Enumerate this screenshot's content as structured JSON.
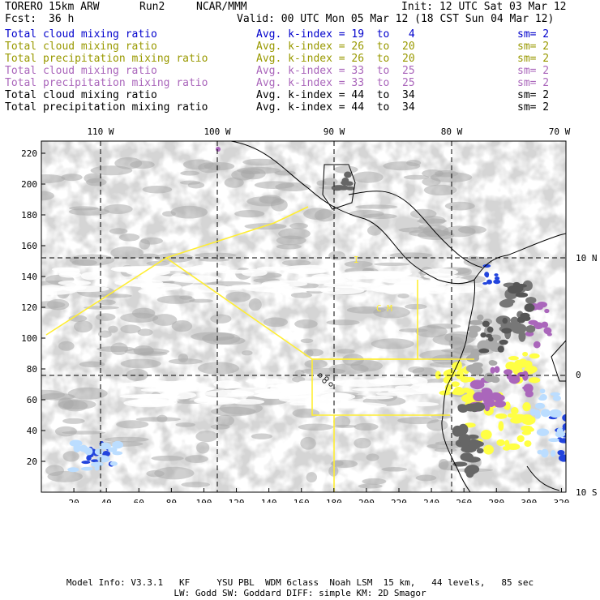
{
  "header": {
    "model": "TORERO",
    "resolution": "15km ARW",
    "run": "Run2",
    "org": "NCAR/MMM",
    "init": "Init: 12 UTC Sat 03 Mar 12",
    "fcst_label": "Fcst:",
    "fcst_value": "36 h",
    "valid": "Valid: 00 UTC Mon 05 Mar 12 (18 CST Sun 04 Mar 12)"
  },
  "legend": [
    {
      "name": "Total cloud mixing ratio",
      "avg": "Avg. k-index =",
      "from": "19",
      "to_word": "to",
      "to": "4",
      "sm": "sm= 2",
      "color": "#0000cc"
    },
    {
      "name": "Total cloud mixing ratio",
      "avg": "Avg. k-index =",
      "from": "26",
      "to_word": "to",
      "to": "20",
      "sm": "sm= 2",
      "color": "#999900"
    },
    {
      "name": "Total precipitation mixing ratio",
      "avg": "Avg. k-index =",
      "from": "26",
      "to_word": "to",
      "to": "20",
      "sm": "sm= 2",
      "color": "#999900"
    },
    {
      "name": "Total cloud mixing ratio",
      "avg": "Avg. k-index =",
      "from": "33",
      "to_word": "to",
      "to": "25",
      "sm": "sm= 2",
      "color": "#aa66bb"
    },
    {
      "name": "Total precipitation mixing ratio",
      "avg": "Avg. k-index =",
      "from": "33",
      "to_word": "to",
      "to": "25",
      "sm": "sm= 2",
      "color": "#aa66bb"
    },
    {
      "name": "Total cloud mixing ratio",
      "avg": "Avg. k-index =",
      "from": "44",
      "to_word": "to",
      "to": "34",
      "sm": "sm= 2",
      "color": "#000000"
    },
    {
      "name": "Total precipitation mixing ratio",
      "avg": "Avg. k-index =",
      "from": "44",
      "to_word": "to",
      "to": "34",
      "sm": "sm= 2",
      "color": "#000000"
    }
  ],
  "map": {
    "lon_labels": [
      "110 W",
      "100 W",
      "90 W",
      "80 W",
      "70 W"
    ],
    "lat_labels": [
      "10 N",
      "0",
      "10 S"
    ],
    "x_ticks": [
      "20",
      "40",
      "60",
      "80",
      "100",
      "120",
      "140",
      "160",
      "180",
      "200",
      "220",
      "240",
      "260",
      "280",
      "300",
      "320"
    ],
    "y_ticks": [
      "20",
      "40",
      "60",
      "80",
      "100",
      "120",
      "140",
      "160",
      "180",
      "200",
      "220"
    ],
    "colors": {
      "cloud_gray": "#aaaaaa",
      "cloud_dark": "#555555",
      "yellow": "#ffff44",
      "purple": "#aa66bb",
      "blue": "#2244dd",
      "lightblue": "#bbddff",
      "coast": "#000000",
      "box_line": "#ffee33"
    }
  },
  "footer": {
    "line1": "Model Info: V3.3.1   KF     YSU PBL  WDM 6class  Noah LSM  15 km,   44 levels,   85 sec",
    "line2": "LW: Godd SW: Goddard DIFF: simple KM: 2D Smagor"
  }
}
